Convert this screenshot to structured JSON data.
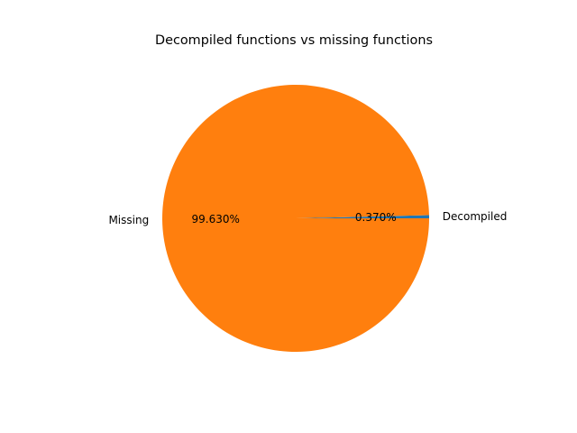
{
  "chart_data": {
    "type": "pie",
    "title": "Decompiled functions vs missing functions",
    "slices": [
      {
        "label": "Decompiled",
        "value": 0.37,
        "pct_label": "0.370%",
        "color": "#1f77b4"
      },
      {
        "label": "Missing",
        "value": 99.63,
        "pct_label": "99.630%",
        "color": "#ff7f0e"
      }
    ],
    "start_angle_deg": 0,
    "direction": "counterclockwise",
    "legend": "none"
  }
}
